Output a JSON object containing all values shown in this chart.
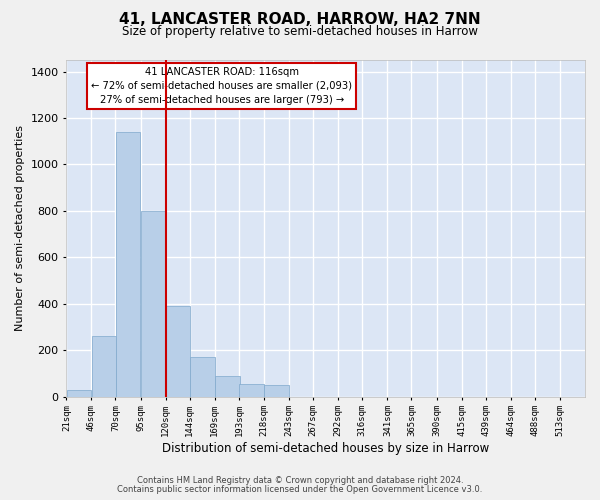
{
  "title": "41, LANCASTER ROAD, HARROW, HA2 7NN",
  "subtitle": "Size of property relative to semi-detached houses in Harrow",
  "xlabel": "Distribution of semi-detached houses by size in Harrow",
  "ylabel": "Number of semi-detached properties",
  "annotation_line1": "41 LANCASTER ROAD: 116sqm",
  "annotation_line2": "← 72% of semi-detached houses are smaller (2,093)",
  "annotation_line3": "27% of semi-detached houses are larger (793) →",
  "bar_color": "#b8cfe8",
  "bar_edge_color": "#7fa8cc",
  "redline_color": "#cc0000",
  "plot_bg_color": "#dce6f5",
  "fig_bg_color": "#f0f0f0",
  "grid_color": "#ffffff",
  "bin_lefts": [
    21,
    46,
    70,
    95,
    120,
    144,
    169,
    193,
    218,
    243,
    267,
    292,
    316,
    341,
    365,
    390,
    415,
    439,
    464,
    488
  ],
  "bin_width": 25,
  "bar_heights": [
    30,
    260,
    1140,
    800,
    390,
    170,
    90,
    55,
    50,
    0,
    0,
    0,
    0,
    0,
    0,
    0,
    0,
    0,
    0,
    0
  ],
  "categories": [
    "21sqm",
    "46sqm",
    "70sqm",
    "95sqm",
    "120sqm",
    "144sqm",
    "169sqm",
    "193sqm",
    "218sqm",
    "243sqm",
    "267sqm",
    "292sqm",
    "316sqm",
    "341sqm",
    "365sqm",
    "390sqm",
    "415sqm",
    "439sqm",
    "464sqm",
    "488sqm",
    "513sqm"
  ],
  "xtick_positions": [
    21,
    46,
    70,
    95,
    120,
    144,
    169,
    193,
    218,
    243,
    267,
    292,
    316,
    341,
    365,
    390,
    415,
    439,
    464,
    488,
    513
  ],
  "redline_x": 120,
  "xlim": [
    21,
    538
  ],
  "ylim": [
    0,
    1450
  ],
  "yticks": [
    0,
    200,
    400,
    600,
    800,
    1000,
    1200,
    1400
  ],
  "footer1": "Contains HM Land Registry data © Crown copyright and database right 2024.",
  "footer2": "Contains public sector information licensed under the Open Government Licence v3.0."
}
